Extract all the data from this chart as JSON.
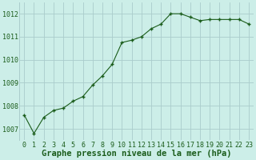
{
  "x": [
    0,
    1,
    2,
    3,
    4,
    5,
    6,
    7,
    8,
    9,
    10,
    11,
    12,
    13,
    14,
    15,
    16,
    17,
    18,
    19,
    20,
    21,
    22,
    23
  ],
  "y": [
    1007.6,
    1006.8,
    1007.5,
    1007.8,
    1007.9,
    1008.2,
    1008.4,
    1008.9,
    1009.3,
    1009.8,
    1010.75,
    1010.85,
    1011.0,
    1011.35,
    1011.55,
    1012.0,
    1012.0,
    1011.85,
    1011.7,
    1011.75,
    1011.75,
    1011.75,
    1011.75,
    1011.55
  ],
  "line_color": "#1a5c1a",
  "marker_color": "#1a5c1a",
  "bg_color": "#cceee8",
  "grid_color": "#aacccc",
  "xlabel": "Graphe pression niveau de la mer (hPa)",
  "xlabel_color": "#1a5c1a",
  "yticks": [
    1007,
    1008,
    1009,
    1010,
    1011,
    1012
  ],
  "xticks": [
    0,
    1,
    2,
    3,
    4,
    5,
    6,
    7,
    8,
    9,
    10,
    11,
    12,
    13,
    14,
    15,
    16,
    17,
    18,
    19,
    20,
    21,
    22,
    23
  ],
  "ylim": [
    1006.5,
    1012.5
  ],
  "xlim": [
    -0.5,
    23.5
  ],
  "tick_color": "#1a5c1a",
  "tick_fontsize": 6.0,
  "xlabel_fontsize": 7.5,
  "linewidth": 0.8,
  "markersize": 3.5
}
